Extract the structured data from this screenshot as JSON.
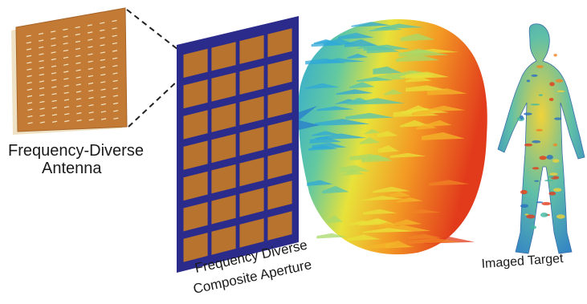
{
  "labels": {
    "antenna_line1": "Frequency-Diverse",
    "antenna_line2": "Antenna",
    "aperture_line1": "Frequency Diverse",
    "aperture_line2": "Composite Aperture",
    "target": "Imaged Target"
  },
  "colors": {
    "panel_fill": "#b8732e",
    "panel_frame": "#2b2b8c",
    "antenna_fill": "#c27a34",
    "antenna_edge": "#e7d3ae",
    "slot": "#f2e3c2"
  },
  "aperture_grid": {
    "rows": 7,
    "cols": 4
  }
}
